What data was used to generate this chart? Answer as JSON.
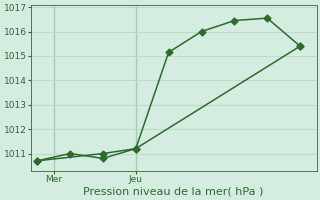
{
  "bg_color": "#d4ede0",
  "grid_color": "#b8d8c8",
  "line_color": "#2d6a2d",
  "marker_color": "#2d6a2d",
  "line1_x": [
    0,
    1,
    2,
    3,
    4,
    5,
    6,
    7,
    8
  ],
  "line1_y": [
    1010.7,
    1011.0,
    1010.8,
    1011.2,
    1015.15,
    1016.0,
    1016.45,
    1016.55,
    1015.4
  ],
  "line2_x": [
    0,
    2,
    3,
    8
  ],
  "line2_y": [
    1010.7,
    1011.0,
    1011.2,
    1015.4
  ],
  "ylim": [
    1010.3,
    1017.1
  ],
  "yticks": [
    1011,
    1012,
    1013,
    1014,
    1015,
    1016,
    1017
  ],
  "xtick_positions": [
    0.5,
    3
  ],
  "xtick_labels": [
    "Mer",
    "Jeu"
  ],
  "xlabel": "Pression niveau de la mer( hPa )",
  "xlabel_fontsize": 8,
  "tick_fontsize": 6.5,
  "marker_size": 3.5,
  "linewidth": 1.1,
  "vline_positions": [
    0.5,
    3
  ]
}
